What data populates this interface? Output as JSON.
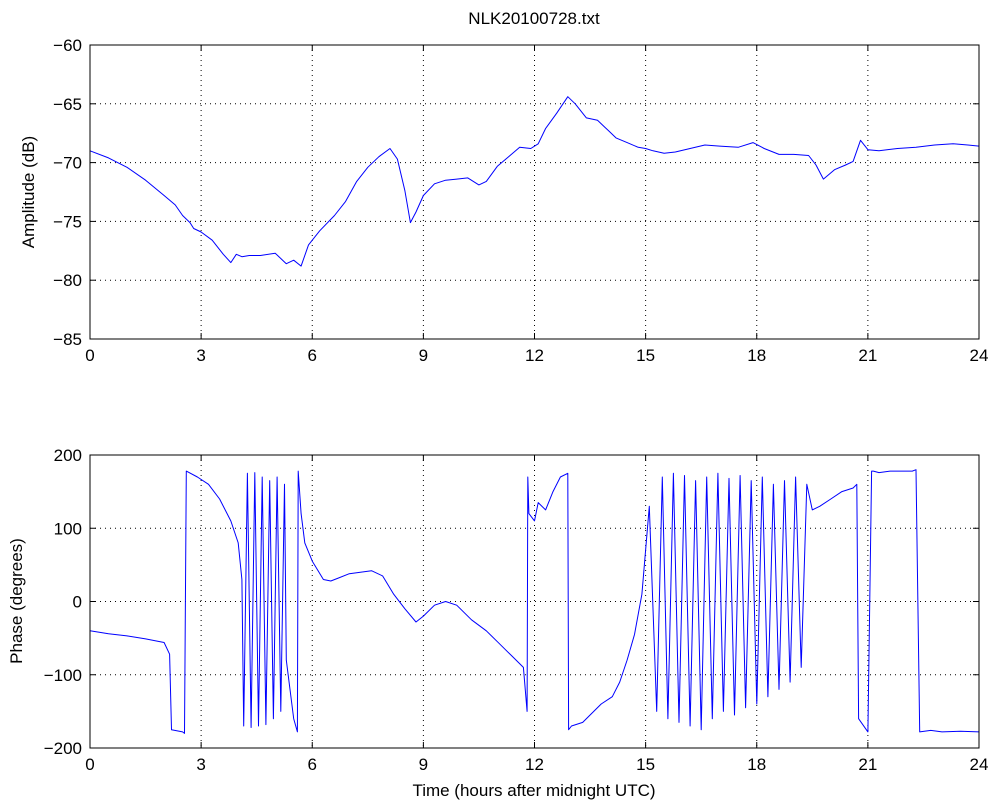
{
  "chart_data": [
    {
      "type": "line",
      "title": "NLK20100728.txt",
      "xlabel": "",
      "ylabel": "Amplitude (dB)",
      "xlim": [
        0,
        24
      ],
      "ylim": [
        -85,
        -60
      ],
      "xticks": [
        0,
        3,
        6,
        9,
        12,
        15,
        18,
        21,
        24
      ],
      "yticks": [
        -85,
        -80,
        -75,
        -70,
        -65,
        -60
      ],
      "xtick_labels": [
        "0",
        "3",
        "6",
        "9",
        "12",
        "15",
        "18",
        "21",
        "24"
      ],
      "ytick_labels": [
        "−85",
        "−80",
        "−75",
        "−70",
        "−65",
        "−60"
      ],
      "grid": true,
      "color": "#0000ff",
      "series": [
        {
          "x": [
            0,
            0.5,
            1,
            1.5,
            2,
            2.3,
            2.5,
            2.7,
            2.8,
            3,
            3.3,
            3.6,
            3.8,
            3.95,
            4.1,
            4.3,
            4.6,
            5,
            5.3,
            5.5,
            5.7,
            5.9,
            6.2,
            6.6,
            6.9,
            7.2,
            7.5,
            7.8,
            8.1,
            8.3,
            8.5,
            8.65,
            8.8,
            9,
            9.3,
            9.6,
            9.9,
            10.2,
            10.5,
            10.7,
            11,
            11.3,
            11.6,
            11.9,
            12.1,
            12.3,
            12.6,
            12.9,
            13.1,
            13.4,
            13.7,
            14,
            14.2,
            14.5,
            14.8,
            15,
            15.2,
            15.5,
            15.8,
            16.2,
            16.6,
            17,
            17.5,
            17.9,
            18.2,
            18.6,
            19,
            19.4,
            19.6,
            19.8,
            20.1,
            20.4,
            20.6,
            20.8,
            21,
            21.3,
            21.8,
            22.3,
            22.8,
            23.3,
            23.7,
            24
          ],
          "y": [
            -69,
            -69.6,
            -70.4,
            -71.5,
            -72.8,
            -73.6,
            -74.5,
            -75.1,
            -75.6,
            -75.9,
            -76.6,
            -77.8,
            -78.5,
            -77.8,
            -78,
            -77.9,
            -77.9,
            -77.7,
            -78.6,
            -78.3,
            -78.8,
            -77,
            -75.8,
            -74.5,
            -73.3,
            -71.6,
            -70.4,
            -69.5,
            -68.8,
            -69.7,
            -72.4,
            -75.1,
            -74.2,
            -72.8,
            -71.8,
            -71.5,
            -71.4,
            -71.3,
            -71.9,
            -71.6,
            -70.3,
            -69.5,
            -68.7,
            -68.8,
            -68.4,
            -67.1,
            -65.8,
            -64.4,
            -65,
            -66.2,
            -66.4,
            -67.3,
            -67.9,
            -68.3,
            -68.7,
            -68.8,
            -69,
            -69.2,
            -69.1,
            -68.8,
            -68.5,
            -68.6,
            -68.7,
            -68.3,
            -68.8,
            -69.3,
            -69.3,
            -69.4,
            -70.2,
            -71.4,
            -70.6,
            -70.2,
            -69.9,
            -68.1,
            -68.9,
            -69,
            -68.8,
            -68.7,
            -68.5,
            -68.4,
            -68.5,
            -68.6
          ]
        }
      ]
    },
    {
      "type": "line",
      "title": "",
      "xlabel": "Time (hours after midnight UTC)",
      "ylabel": "Phase (degrees)",
      "xlim": [
        0,
        24
      ],
      "ylim": [
        -200,
        200
      ],
      "xticks": [
        0,
        3,
        6,
        9,
        12,
        15,
        18,
        21,
        24
      ],
      "yticks": [
        -200,
        -100,
        0,
        100,
        200
      ],
      "xtick_labels": [
        "0",
        "3",
        "6",
        "9",
        "12",
        "15",
        "18",
        "21",
        "24"
      ],
      "ytick_labels": [
        "−200",
        "−100",
        "0",
        "100",
        "200"
      ],
      "grid": true,
      "color": "#0000ff",
      "series": [
        {
          "x": [
            0,
            0.5,
            1,
            1.5,
            2,
            2.15,
            2.2,
            2.5,
            2.55,
            2.6,
            2.9,
            3.2,
            3.5,
            3.8,
            4,
            4.1,
            4.15,
            4.25,
            4.35,
            4.45,
            4.55,
            4.65,
            4.75,
            4.85,
            4.95,
            5.05,
            5.15,
            5.25,
            5.3,
            5.4,
            5.5,
            5.6,
            5.62,
            5.7,
            5.8,
            6,
            6.3,
            6.5,
            6.7,
            7,
            7.3,
            7.6,
            7.9,
            8.2,
            8.5,
            8.8,
            9,
            9.3,
            9.6,
            9.9,
            10.3,
            10.7,
            11,
            11.4,
            11.7,
            11.8,
            11.82,
            11.85,
            12,
            12.1,
            12.3,
            12.5,
            12.7,
            12.9,
            12.92,
            13,
            13.3,
            13.5,
            13.8,
            14.1,
            14.3,
            14.5,
            14.7,
            14.9,
            15.1,
            15.3,
            15.45,
            15.6,
            15.75,
            15.9,
            16.05,
            16.2,
            16.35,
            16.5,
            16.65,
            16.8,
            16.95,
            17.1,
            17.25,
            17.4,
            17.55,
            17.7,
            17.85,
            18,
            18.15,
            18.3,
            18.45,
            18.6,
            18.75,
            18.9,
            19.05,
            19.2,
            19.35,
            19.5,
            19.7,
            20,
            20.3,
            20.6,
            20.7,
            20.75,
            21,
            21.1,
            21.15,
            21.3,
            21.6,
            21.9,
            22.2,
            22.3,
            22.4,
            22.7,
            23,
            23.5,
            24
          ],
          "y": [
            -40,
            -44,
            -47,
            -51,
            -56,
            -72,
            -175,
            -178,
            -180,
            178,
            170,
            160,
            140,
            110,
            80,
            30,
            -170,
            175,
            -172,
            176,
            -170,
            170,
            -168,
            165,
            -160,
            170,
            -150,
            160,
            -80,
            -120,
            -160,
            -178,
            178,
            120,
            80,
            55,
            30,
            28,
            32,
            38,
            40,
            42,
            35,
            10,
            -10,
            -28,
            -20,
            -5,
            0,
            -5,
            -25,
            -40,
            -55,
            -75,
            -90,
            -150,
            170,
            120,
            110,
            135,
            125,
            150,
            170,
            175,
            -175,
            -170,
            -165,
            -155,
            -140,
            -130,
            -110,
            -80,
            -45,
            10,
            130,
            -150,
            170,
            -160,
            175,
            -165,
            172,
            -170,
            165,
            -175,
            170,
            -160,
            175,
            -150,
            168,
            -155,
            172,
            -145,
            165,
            -140,
            170,
            -130,
            160,
            -120,
            165,
            -110,
            170,
            -90,
            160,
            125,
            130,
            140,
            150,
            155,
            160,
            -160,
            -178,
            178,
            178,
            176,
            178,
            178,
            178,
            180,
            -178,
            -176,
            -178,
            -177,
            -178
          ]
        }
      ]
    }
  ]
}
